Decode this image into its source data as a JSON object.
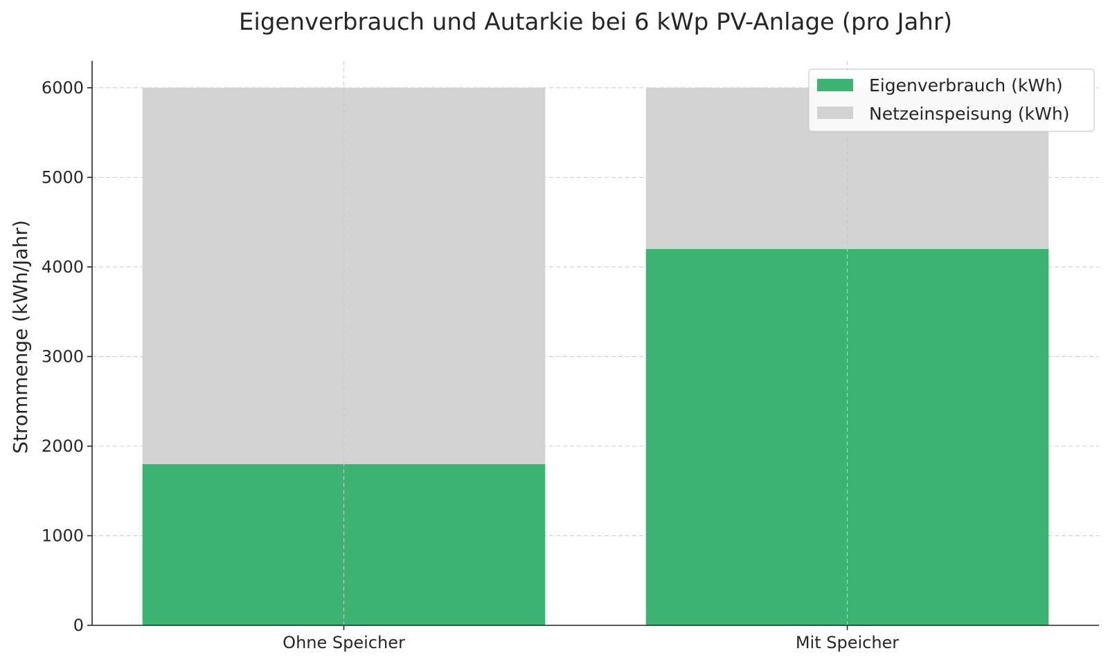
{
  "chart_data": {
    "type": "bar",
    "stacked": true,
    "title": "Eigenverbrauch und Autarkie bei 6 kWp PV-Anlage (pro Jahr)",
    "xlabel": "",
    "ylabel": "Strommenge (kWh/Jahr)",
    "categories": [
      "Ohne Speicher",
      "Mit Speicher"
    ],
    "series": [
      {
        "name": "Eigenverbrauch (kWh)",
        "values": [
          1800,
          4200
        ],
        "color": "#3cb371"
      },
      {
        "name": "Netzeinspeisung (kWh)",
        "values": [
          4200,
          1800
        ],
        "color": "#d3d3d3"
      }
    ],
    "ylim": [
      0,
      6300
    ],
    "yticks": [
      0,
      1000,
      2000,
      3000,
      4000,
      5000,
      6000
    ],
    "grid": true,
    "legend_position": "top-right"
  }
}
